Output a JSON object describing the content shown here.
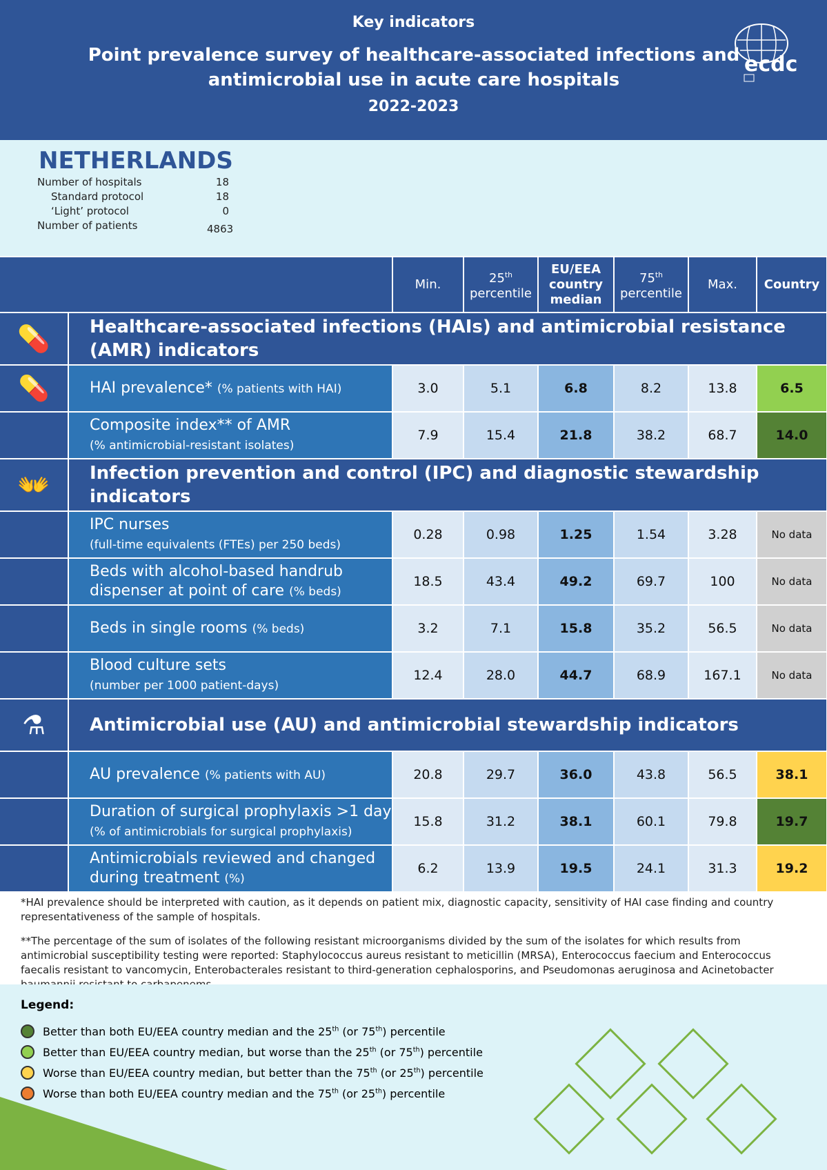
{
  "header": {
    "kicker": "Key indicators",
    "title": "Point prevalence survey of healthcare-associated infections and antimicrobial use in acute care hospitals",
    "years": "2022-2023",
    "logo_text": "ecdc"
  },
  "country": "NETHERLANDS",
  "stats": [
    {
      "label": "Number of hospitals",
      "value": "18"
    },
    {
      "label": "Standard protocol",
      "value": "18"
    },
    {
      "label": "‘Light’ protocol",
      "value": "0"
    },
    {
      "label": "Number of patients",
      "value": "4863"
    }
  ],
  "columns": {
    "min": "Min.",
    "p25": "25",
    "p25b": "percentile",
    "median": "EU/EEA country median",
    "p75": "75",
    "p75b": "percentile",
    "max": "Max.",
    "country": "Country",
    "th": "th"
  },
  "colors": {
    "dark_green": "#548235",
    "light_green": "#92d050",
    "yellow": "#ffd34e",
    "orange": "#ed7d31",
    "no_data": "#d0d0d0"
  },
  "sections": [
    {
      "title": "Healthcare-associated infections (HAIs) and antimicrobial resistance (AMR) indicators",
      "icon": "medicine-icon",
      "rows": [
        {
          "label": "HAI prevalence*",
          "sub": "(% patients with HAI)",
          "inline": true,
          "values": [
            "3.0",
            "5.1",
            "6.8",
            "8.2",
            "13.8"
          ],
          "country": "6.5",
          "status": "light_green",
          "icon": "medicine-icon"
        },
        {
          "label": "Composite index** of AMR",
          "sub": "(% antimicrobial-resistant isolates)",
          "values": [
            "7.9",
            "15.4",
            "21.8",
            "38.2",
            "68.7"
          ],
          "country": "14.0",
          "status": "dark_green"
        }
      ]
    },
    {
      "title": "Infection prevention and control (IPC) and diagnostic stewardship indicators",
      "icon": "handwash-icon",
      "rows": [
        {
          "label": "IPC nurses",
          "sub": "(full-time equivalents (FTEs) per 250 beds)",
          "values": [
            "0.28",
            "0.98",
            "1.25",
            "1.54",
            "3.28"
          ],
          "country": "No data",
          "status": "no_data"
        },
        {
          "label": "Beds with alcohol-based handrub dispenser at point of care",
          "sub": "(% beds)",
          "inline": true,
          "values": [
            "18.5",
            "43.4",
            "49.2",
            "69.7",
            "100"
          ],
          "country": "No data",
          "status": "no_data"
        },
        {
          "label": "Beds in single rooms",
          "sub": "(% beds)",
          "inline": true,
          "values": [
            "3.2",
            "7.1",
            "15.8",
            "35.2",
            "56.5"
          ],
          "country": "No data",
          "status": "no_data"
        },
        {
          "label": "Blood culture sets",
          "sub": "(number per 1000 patient-days)",
          "values": [
            "12.4",
            "28.0",
            "44.7",
            "68.9",
            "167.1"
          ],
          "country": "No data",
          "status": "no_data"
        }
      ]
    },
    {
      "title": "Antimicrobial use (AU) and antimicrobial stewardship indicators",
      "icon": "pills-icon",
      "rows": [
        {
          "label": "AU prevalence",
          "sub": "(% patients with AU)",
          "inline": true,
          "values": [
            "20.8",
            "29.7",
            "36.0",
            "43.8",
            "56.5"
          ],
          "country": "38.1",
          "status": "yellow"
        },
        {
          "label": "Duration of surgical prophylaxis >1 day",
          "sub": "(% of antimicrobials for surgical prophylaxis)",
          "values": [
            "15.8",
            "31.2",
            "38.1",
            "60.1",
            "79.8"
          ],
          "country": "19.7",
          "status": "dark_green"
        },
        {
          "label": "Antimicrobials reviewed and changed during treatment",
          "sub": "(%)",
          "inline": true,
          "values": [
            "6.2",
            "13.9",
            "19.5",
            "24.1",
            "31.3"
          ],
          "country": "19.2",
          "status": "yellow"
        }
      ]
    }
  ],
  "footnotes": [
    "*HAI prevalence should be interpreted with caution, as it depends on patient mix, diagnostic capacity, sensitivity of HAI case finding and country representativeness of the sample of hospitals.",
    "**The percentage of the sum of isolates of the following resistant microorganisms divided by the sum of the isolates for which results from antimicrobial susceptibility testing were reported: Staphylococcus aureus resistant to meticillin (MRSA), Enterococcus faecium and Enterococcus faecalis resistant to vancomycin, Enterobacterales resistant to third-generation cephalosporins, and Pseudomonas aeruginosa and Acinetobacter baumannii resistant to carbapenems."
  ],
  "legend": {
    "title": "Legend:",
    "items": [
      {
        "color": "dark_green",
        "text": "Better than both EU/EEA country median and the 25th (or 75th) percentile"
      },
      {
        "color": "light_green",
        "text": "Better than EU/EEA country median, but worse than the 25th (or 75th) percentile"
      },
      {
        "color": "yellow",
        "text": "Worse than EU/EEA country median, but better than the 75th (or 25th) percentile"
      },
      {
        "color": "orange",
        "text": "Worse than both EU/EEA country median and the 75th (or 25th) percentile"
      }
    ]
  }
}
